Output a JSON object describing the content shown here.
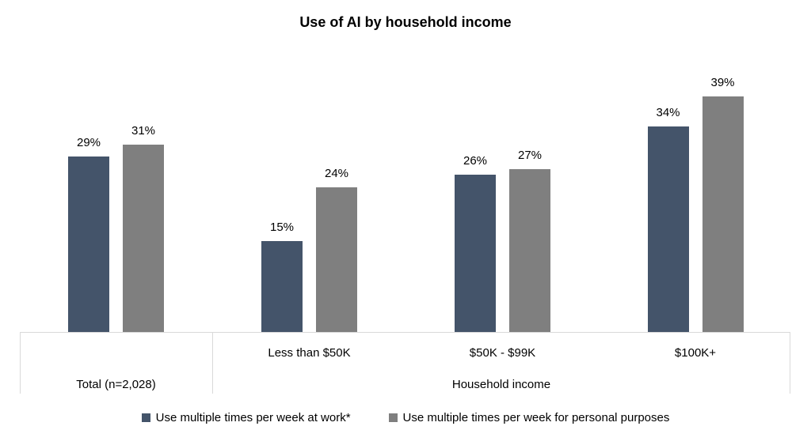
{
  "chart_data": {
    "type": "bar",
    "title": "Use of AI by household income",
    "categories": [
      "Total (n=2,028)",
      "Less than $50K",
      "$50K - $99K",
      "$100K+"
    ],
    "series": [
      {
        "name": "Use multiple times per week at work*",
        "color": "#44546A",
        "values": [
          29,
          15,
          26,
          34
        ]
      },
      {
        "name": "Use multiple times per week for personal purposes",
        "color": "#7F7F7F",
        "values": [
          31,
          24,
          27,
          39
        ]
      }
    ],
    "data_label_suffix": "%",
    "x_axis": {
      "sections": [
        {
          "group_label": "Total (n=2,028)",
          "tick_labels": []
        },
        {
          "group_label": "Household income",
          "tick_labels": [
            "Less than $50K",
            "$50K - $99K",
            "$100K+"
          ]
        }
      ]
    },
    "y_axis": {
      "visible": false,
      "ylim": [
        0,
        45
      ]
    },
    "grid": false,
    "legend_position": "bottom",
    "colors": {
      "axis_line": "#D9D9D9",
      "text": "#000000",
      "background": "#FFFFFF"
    }
  }
}
